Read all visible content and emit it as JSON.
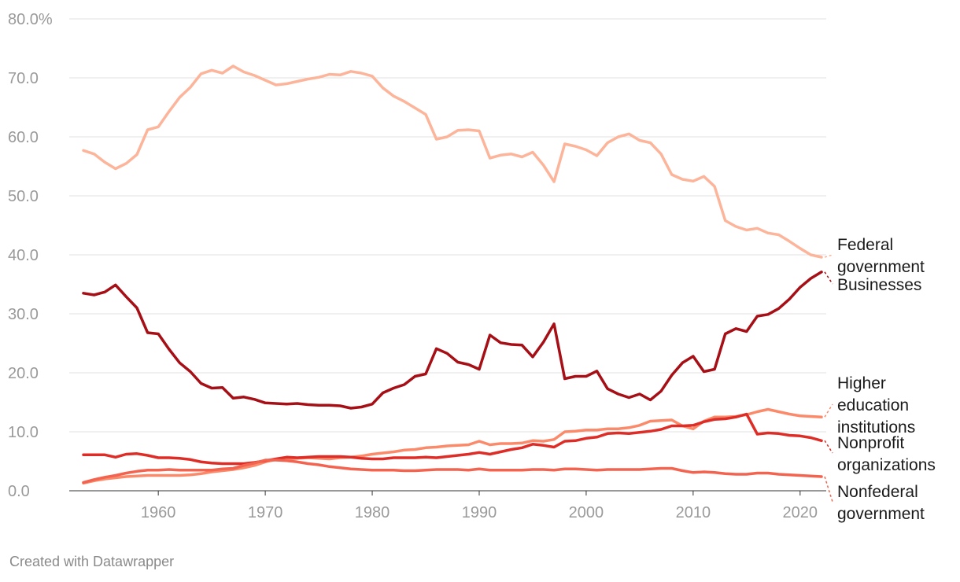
{
  "footer": "Created with Datawrapper",
  "chart_data": {
    "type": "line",
    "ylim": [
      0,
      80
    ],
    "xlim": [
      1953,
      2022
    ],
    "y_ticks": [
      {
        "value": 0,
        "label": "0.0"
      },
      {
        "value": 10,
        "label": "10.0"
      },
      {
        "value": 20,
        "label": "20.0"
      },
      {
        "value": 30,
        "label": "30.0"
      },
      {
        "value": 40,
        "label": "40.0"
      },
      {
        "value": 50,
        "label": "50.0"
      },
      {
        "value": 60,
        "label": "60.0"
      },
      {
        "value": 70,
        "label": "70.0"
      },
      {
        "value": 80,
        "label": "80.0%"
      }
    ],
    "x_ticks": [
      1960,
      1970,
      1980,
      1990,
      2000,
      2010,
      2020
    ],
    "grid": true,
    "legend": "inline labels at right end of lines",
    "x": [
      1953,
      1954,
      1955,
      1956,
      1957,
      1958,
      1959,
      1960,
      1961,
      1962,
      1963,
      1964,
      1965,
      1966,
      1967,
      1968,
      1969,
      1970,
      1971,
      1972,
      1973,
      1974,
      1975,
      1976,
      1977,
      1978,
      1979,
      1980,
      1981,
      1982,
      1983,
      1984,
      1985,
      1986,
      1987,
      1988,
      1989,
      1990,
      1991,
      1992,
      1993,
      1994,
      1995,
      1996,
      1997,
      1998,
      1999,
      2000,
      2001,
      2002,
      2003,
      2004,
      2005,
      2006,
      2007,
      2008,
      2009,
      2010,
      2011,
      2012,
      2013,
      2014,
      2015,
      2016,
      2017,
      2018,
      2019,
      2020,
      2021,
      2022
    ],
    "series": [
      {
        "name": "Federal government",
        "label_lines": [
          "Federal",
          "government"
        ],
        "color": "#fcb59a",
        "values": [
          57.7,
          57.1,
          55.7,
          54.6,
          55.5,
          57.0,
          61.2,
          61.7,
          64.3,
          66.7,
          68.4,
          70.7,
          71.3,
          70.8,
          72.0,
          71.0,
          70.4,
          69.6,
          68.8,
          69.0,
          69.4,
          69.8,
          70.1,
          70.6,
          70.5,
          71.1,
          70.8,
          70.3,
          68.3,
          66.9,
          66.0,
          64.9,
          63.8,
          59.6,
          60.0,
          61.1,
          61.2,
          61.0,
          56.4,
          56.9,
          57.1,
          56.6,
          57.4,
          55.2,
          52.4,
          58.8,
          58.4,
          57.8,
          56.8,
          59.0,
          60.0,
          60.5,
          59.4,
          59.0,
          57.1,
          53.6,
          52.8,
          52.5,
          53.3,
          51.6,
          45.8,
          44.8,
          44.2,
          44.5,
          43.7,
          43.4,
          42.3,
          41.1,
          40.0,
          39.6
        ]
      },
      {
        "name": "Businesses",
        "label_lines": [
          "Businesses"
        ],
        "color": "#a50f15",
        "values": [
          33.5,
          33.2,
          33.7,
          34.9,
          32.9,
          31.0,
          26.8,
          26.6,
          24.0,
          21.7,
          20.2,
          18.2,
          17.4,
          17.5,
          15.7,
          15.9,
          15.5,
          14.9,
          14.8,
          14.7,
          14.8,
          14.6,
          14.5,
          14.5,
          14.4,
          14.0,
          14.2,
          14.7,
          16.6,
          17.4,
          18.0,
          19.4,
          19.8,
          24.1,
          23.3,
          21.8,
          21.4,
          20.6,
          26.4,
          25.1,
          24.8,
          24.7,
          22.7,
          25.2,
          28.3,
          19.0,
          19.4,
          19.4,
          20.3,
          17.3,
          16.4,
          15.8,
          16.4,
          15.4,
          16.9,
          19.6,
          21.7,
          22.8,
          20.2,
          20.6,
          26.6,
          27.5,
          27.0,
          29.6,
          29.9,
          30.9,
          32.5,
          34.5,
          36.0,
          37.1
        ]
      },
      {
        "name": "Higher education institutions",
        "label_lines": [
          "Higher",
          "education",
          "institutions"
        ],
        "color": "#fb8a6a",
        "values": [
          1.3,
          1.7,
          2.0,
          2.2,
          2.4,
          2.5,
          2.6,
          2.6,
          2.6,
          2.6,
          2.7,
          2.9,
          3.2,
          3.4,
          3.6,
          3.9,
          4.3,
          4.9,
          5.3,
          5.4,
          5.5,
          5.6,
          5.5,
          5.4,
          5.6,
          5.7,
          5.9,
          6.2,
          6.4,
          6.6,
          6.9,
          7.0,
          7.3,
          7.4,
          7.6,
          7.7,
          7.8,
          8.4,
          7.8,
          8.0,
          8.0,
          8.1,
          8.5,
          8.4,
          8.7,
          10.0,
          10.1,
          10.3,
          10.3,
          10.5,
          10.5,
          10.7,
          11.1,
          11.8,
          11.9,
          12.0,
          11.0,
          10.5,
          11.8,
          12.5,
          12.5,
          12.6,
          12.9,
          13.4,
          13.8,
          13.4,
          13.0,
          12.7,
          12.6,
          12.5
        ]
      },
      {
        "name": "Nonprofit organizations",
        "label_lines": [
          "Nonprofit",
          "organizations"
        ],
        "color": "#de2d26",
        "values": [
          6.1,
          6.1,
          6.1,
          5.7,
          6.2,
          6.3,
          6.0,
          5.6,
          5.6,
          5.5,
          5.3,
          4.9,
          4.7,
          4.6,
          4.6,
          4.6,
          4.8,
          5.1,
          5.4,
          5.7,
          5.6,
          5.7,
          5.8,
          5.8,
          5.8,
          5.7,
          5.5,
          5.4,
          5.4,
          5.6,
          5.6,
          5.6,
          5.7,
          5.6,
          5.8,
          6.0,
          6.2,
          6.5,
          6.2,
          6.6,
          7.0,
          7.3,
          7.9,
          7.7,
          7.4,
          8.4,
          8.5,
          8.9,
          9.1,
          9.7,
          9.8,
          9.7,
          9.9,
          10.1,
          10.4,
          11.0,
          11.0,
          11.1,
          11.7,
          12.1,
          12.2,
          12.5,
          13.0,
          9.6,
          9.8,
          9.7,
          9.4,
          9.3,
          9.0,
          8.5
        ]
      },
      {
        "name": "Nonfederal government",
        "label_lines": [
          "Nonfederal",
          "government"
        ],
        "color": "#f26450",
        "values": [
          1.4,
          1.9,
          2.3,
          2.6,
          3.0,
          3.3,
          3.5,
          3.5,
          3.6,
          3.5,
          3.5,
          3.5,
          3.5,
          3.7,
          3.8,
          4.3,
          4.7,
          5.2,
          5.2,
          5.1,
          4.9,
          4.6,
          4.4,
          4.1,
          3.9,
          3.7,
          3.6,
          3.5,
          3.5,
          3.5,
          3.4,
          3.4,
          3.5,
          3.6,
          3.6,
          3.6,
          3.5,
          3.7,
          3.5,
          3.5,
          3.5,
          3.5,
          3.6,
          3.6,
          3.5,
          3.7,
          3.7,
          3.6,
          3.5,
          3.6,
          3.6,
          3.6,
          3.6,
          3.7,
          3.8,
          3.8,
          3.4,
          3.1,
          3.2,
          3.1,
          2.9,
          2.8,
          2.8,
          3.0,
          3.0,
          2.8,
          2.7,
          2.6,
          2.5,
          2.4
        ]
      }
    ]
  }
}
